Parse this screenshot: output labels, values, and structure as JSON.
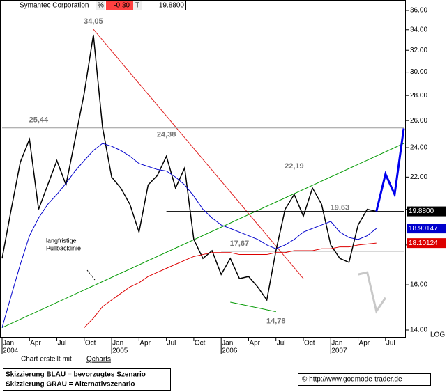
{
  "header": {
    "name": "Symantec Corporation",
    "change_unit": "%",
    "change": "-0.30",
    "last_mark": "T",
    "last": "19.8800"
  },
  "chart_data": {
    "type": "line",
    "log_scale": true,
    "log_label": "LOG",
    "x": [
      "2004-01",
      "2004-02",
      "2004-03",
      "2004-04",
      "2004-05",
      "2004-06",
      "2004-07",
      "2004-08",
      "2004-09",
      "2004-10",
      "2004-11",
      "2004-12",
      "2005-01",
      "2005-02",
      "2005-03",
      "2005-04",
      "2005-05",
      "2005-06",
      "2005-07",
      "2005-08",
      "2005-09",
      "2005-10",
      "2005-11",
      "2005-12",
      "2006-01",
      "2006-02",
      "2006-03",
      "2006-04",
      "2006-05",
      "2006-06",
      "2006-07",
      "2006-08",
      "2006-09",
      "2006-10",
      "2006-11",
      "2006-12",
      "2007-01",
      "2007-02",
      "2007-03",
      "2007-04",
      "2007-05",
      "2007-06"
    ],
    "series": [
      {
        "color": "#000000",
        "last_label": "19.8800",
        "values": [
          17.3,
          20.0,
          23.0,
          24.6,
          20.0,
          21.5,
          23.1,
          21.5,
          24.6,
          28.2,
          33.5,
          25.5,
          22.0,
          21.3,
          20.3,
          18.7,
          21.5,
          22.1,
          23.4,
          21.3,
          22.6,
          18.3,
          17.3,
          17.7,
          16.5,
          17.3,
          16.3,
          16.4,
          15.9,
          15.3,
          17.7,
          20.0,
          20.9,
          19.6,
          21.3,
          20.3,
          18.0,
          17.3,
          17.1,
          19.1,
          20.0,
          19.88
        ]
      },
      {
        "color": "#0000cc",
        "last_label": "18.90147",
        "values": [
          14.1,
          15.5,
          17.0,
          18.5,
          19.5,
          20.3,
          20.9,
          21.6,
          22.4,
          23.1,
          23.8,
          24.3,
          24.1,
          23.8,
          23.4,
          22.9,
          22.7,
          22.5,
          22.4,
          22.0,
          21.5,
          20.8,
          20.0,
          19.5,
          19.1,
          18.9,
          18.7,
          18.5,
          18.3,
          18.0,
          17.8,
          18.0,
          18.3,
          18.7,
          18.9,
          19.1,
          19.3,
          18.7,
          18.4,
          18.3,
          18.5,
          18.90147
        ]
      },
      {
        "color": "#dd0000",
        "last_label": "18.10124",
        "values": [
          null,
          null,
          null,
          null,
          null,
          null,
          null,
          null,
          null,
          14.1,
          14.5,
          15.0,
          15.3,
          15.6,
          15.9,
          16.1,
          16.4,
          16.6,
          16.8,
          17.0,
          17.2,
          17.4,
          17.5,
          17.6,
          17.6,
          17.6,
          17.5,
          17.5,
          17.5,
          17.5,
          17.6,
          17.6,
          17.7,
          17.7,
          17.7,
          17.8,
          17.8,
          17.9,
          17.9,
          18.0,
          18.05,
          18.10124
        ]
      }
    ],
    "lines": [
      {
        "color": "#009900",
        "x": [
          "2004-01",
          "2007-09"
        ],
        "values": [
          14.1,
          24.3
        ]
      },
      {
        "color": "#e02020",
        "x": [
          "2004-11",
          "2006-10"
        ],
        "values": [
          34.05,
          16.3
        ]
      },
      {
        "color": "#999999",
        "x": [
          "2004-01",
          "2007-09"
        ],
        "values": [
          25.44,
          25.44
        ]
      },
      {
        "color": "#000000",
        "x": [
          "2005-07",
          "2007-09"
        ],
        "values": [
          19.88,
          19.88
        ]
      },
      {
        "color": "#999999",
        "x": [
          "2006-01",
          "2007-09"
        ],
        "values": [
          17.67,
          17.67
        ]
      },
      {
        "color": "#009900",
        "x": [
          "2006-02",
          "2006-07"
        ],
        "values": [
          15.2,
          14.78
        ]
      }
    ],
    "scenarios": [
      {
        "color": "#0000ee",
        "x": [
          "2007-06",
          "2007-07",
          "2007-08",
          "2007-09"
        ],
        "values": [
          19.88,
          22.2,
          20.9,
          25.4
        ]
      },
      {
        "color": "#c8c8c8",
        "x": [
          "2007-04",
          "2007-05",
          "2007-06",
          "2007-07"
        ],
        "values": [
          16.5,
          16.6,
          14.8,
          15.4
        ]
      }
    ],
    "annotations": [
      {
        "x": "2004-11",
        "value": 34.05,
        "label": "34,05",
        "anchor": "above"
      },
      {
        "x": "2004-05",
        "value": 25.44,
        "label": "25,44",
        "anchor": "above"
      },
      {
        "x": "2005-07",
        "value": 24.38,
        "label": "24,38",
        "anchor": "above"
      },
      {
        "x": "2006-09",
        "value": 22.19,
        "label": "22,19",
        "anchor": "above"
      },
      {
        "x": "2007-02",
        "value": 19.63,
        "label": "19,63",
        "anchor": "above"
      },
      {
        "x": "2006-03",
        "value": 17.67,
        "label": "17,67",
        "anchor": "above"
      },
      {
        "x": "2006-07",
        "value": 14.78,
        "label": "14,78",
        "anchor": "below"
      }
    ],
    "note": [
      "langfristige",
      "Pullbacklinie"
    ],
    "xlim": [
      "2004-01",
      "2007-09"
    ],
    "xticks": [
      {
        "value": "2004-01",
        "label": "Jan",
        "year": "2004"
      },
      {
        "value": "2004-04",
        "label": "Apr"
      },
      {
        "value": "2004-07",
        "label": "Jul"
      },
      {
        "value": "2004-10",
        "label": "Oct"
      },
      {
        "value": "2005-01",
        "label": "Jan",
        "year": "2005"
      },
      {
        "value": "2005-04",
        "label": "Apr"
      },
      {
        "value": "2005-07",
        "label": "Jul"
      },
      {
        "value": "2005-10",
        "label": "Oct"
      },
      {
        "value": "2006-01",
        "label": "Jan",
        "year": "2006"
      },
      {
        "value": "2006-04",
        "label": "Apr"
      },
      {
        "value": "2006-07",
        "label": "Jul"
      },
      {
        "value": "2006-10",
        "label": "Oct"
      },
      {
        "value": "2007-01",
        "label": "Jan",
        "year": "2007"
      },
      {
        "value": "2007-04",
        "label": "Apr"
      },
      {
        "value": "2007-07",
        "label": "Jul"
      }
    ],
    "ylim": [
      14,
      36
    ],
    "yticks": [
      {
        "value": 14,
        "label": "14.00"
      },
      {
        "value": 16,
        "label": "16.00"
      },
      {
        "value": 18,
        "label": "18.00"
      },
      {
        "value": 20,
        "label": "20.00"
      },
      {
        "value": 22,
        "label": "22.00"
      },
      {
        "value": 24,
        "label": "24.00"
      },
      {
        "value": 26,
        "label": "26.00"
      },
      {
        "value": 28,
        "label": "28.00"
      },
      {
        "value": 30,
        "label": "30.00"
      },
      {
        "value": 32,
        "label": "32.00"
      },
      {
        "value": 34,
        "label": "34.00"
      },
      {
        "value": 36,
        "label": "36.00"
      }
    ]
  },
  "footer": {
    "credit_prefix": "Chart erstellt mit",
    "credit_link": "Qcharts",
    "line1": "Skizzierung BLAU = bevorzugtes Szenario",
    "line2": "Skizzierung GRAU = Alternativszenario",
    "copyright": "© http://www.godmode-trader.de"
  }
}
